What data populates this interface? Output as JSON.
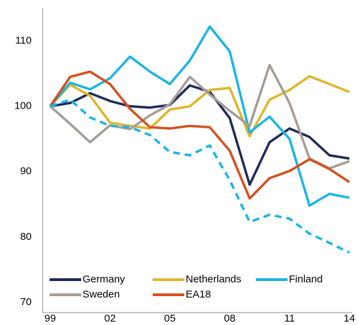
{
  "chart_data": {
    "type": "line",
    "categories": [
      "99",
      null,
      null,
      "02",
      null,
      null,
      "05",
      null,
      null,
      "08",
      null,
      null,
      "11",
      null,
      null,
      "14"
    ],
    "ylim": [
      70,
      115
    ],
    "yticks": [
      70,
      80,
      90,
      100,
      110
    ],
    "series": [
      {
        "name": "Germany",
        "color": "#1f2a5a",
        "values": [
          100,
          100.5,
          102,
          100.8,
          100,
          99.8,
          100.2,
          103.2,
          102.2,
          98.2,
          88,
          94.5,
          96.6,
          95.3,
          92.5,
          92
        ]
      },
      {
        "name": "Netherlands",
        "color": "#e0b52a",
        "values": [
          100,
          103.3,
          101.6,
          97.5,
          97,
          96.6,
          99.5,
          100,
          102.5,
          102.8,
          95.4,
          101,
          102.5,
          104.6,
          103.4,
          102.2
        ]
      },
      {
        "name": "Finland",
        "color": "#19b5e6",
        "values": [
          100,
          103.6,
          102.6,
          104.3,
          107.6,
          105.3,
          103.4,
          107,
          112.2,
          108.4,
          96,
          98.4,
          95,
          84.8,
          86.6,
          86
        ]
      },
      {
        "name": "Sweden",
        "color": "#a59d95",
        "values": [
          100,
          97.3,
          94.5,
          97.1,
          96.5,
          98.6,
          100.3,
          104.5,
          101.8,
          99.3,
          97,
          106.3,
          100.5,
          92,
          90.5,
          91.6
        ]
      },
      {
        "name": "EA18",
        "color": "#d5501e",
        "values": [
          100,
          104.5,
          105.3,
          103.4,
          99.6,
          96.8,
          96.6,
          97,
          96.8,
          93.2,
          85.9,
          89,
          90.1,
          91.9,
          90.4,
          88.4
        ]
      },
      {
        "color": "#19b5e6",
        "dashed": true,
        "values": [
          100,
          101,
          98.3,
          97,
          96.8,
          95.6,
          93,
          92.5,
          94,
          88.7,
          82.3,
          83.4,
          82.8,
          80.5,
          79.1,
          77.6
        ]
      }
    ]
  }
}
